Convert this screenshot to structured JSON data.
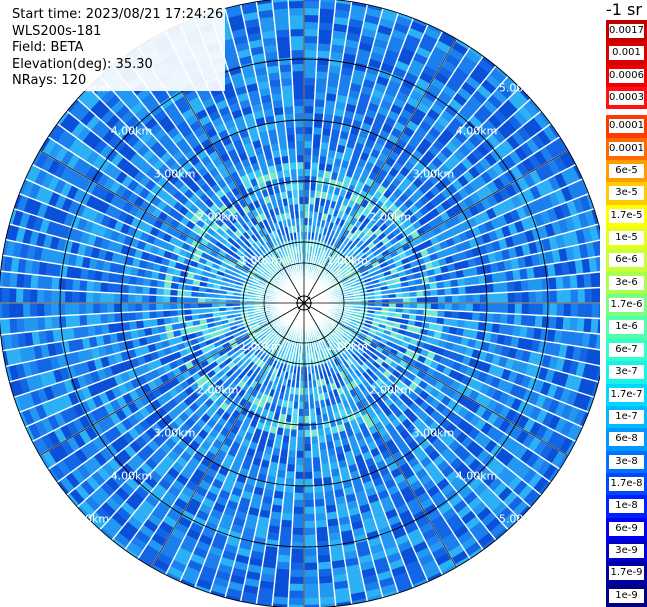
{
  "info": {
    "start_time": "Start time: 2023/08/21 17:24:26",
    "instrument": "WLS200s-181",
    "field": "Field: BETA",
    "elevation": "Elevation(deg): 35.30",
    "nrays": "NRays: 120"
  },
  "colorbar": {
    "units": "-1 sr",
    "upper_labels": [
      "0.0017",
      "0.001",
      "0.0006",
      "0.0003"
    ],
    "upper_colors": [
      "#c20000",
      "#d80000",
      "#ee0000",
      "#ff1010"
    ],
    "lower_labels": [
      "0.00017",
      "0.0001",
      "6e-5",
      "3e-5",
      "1.7e-5",
      "1e-5",
      "6e-6",
      "3e-6",
      "1.7e-6",
      "1e-6",
      "6e-7",
      "3e-7",
      "1.7e-7",
      "1e-7",
      "6e-8",
      "3e-8",
      "1.7e-8",
      "1e-8",
      "6e-9",
      "3e-9",
      "1.7e-9",
      "1e-9"
    ],
    "lower_colors": [
      "#ff3a00",
      "#ff6a00",
      "#ff9a00",
      "#ffca00",
      "#ffff00",
      "#e4ff1c",
      "#c8ff36",
      "#a8ff50",
      "#7cff7c",
      "#50ffa8",
      "#30ffc8",
      "#18f0e8",
      "#00d8ff",
      "#00b8ff",
      "#0098ff",
      "#0070ff",
      "#0048ff",
      "#0020ff",
      "#0000f0",
      "#0000c8",
      "#0000a0",
      "#000080"
    ]
  },
  "range_rings": {
    "ring_labels": [
      "1.00km",
      "2.00km",
      "3.00km",
      "4.00km",
      "5.00km"
    ]
  },
  "map": {
    "background_color": "#1a8be8",
    "ring_color": "#000000",
    "spoke_color": "#ffffff"
  }
}
